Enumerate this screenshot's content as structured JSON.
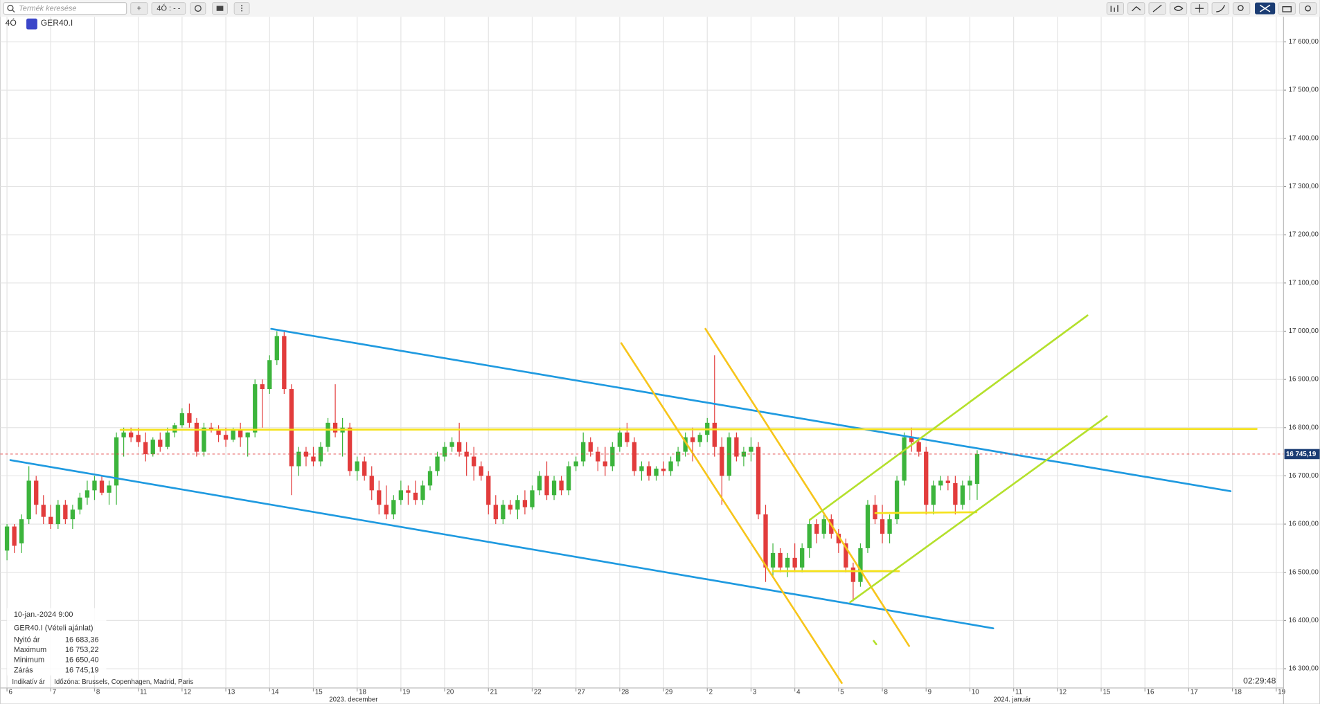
{
  "toolbar": {
    "search_placeholder": "Termék keresése",
    "add_button": "+",
    "timeframe_button": "4Ó : - -"
  },
  "header": {
    "timeframe": "4Ó",
    "symbol": "GER40.I"
  },
  "chart_data": {
    "type": "candlestick",
    "candles": [
      [
        16545,
        16600,
        16525,
        16595
      ],
      [
        16595,
        16600,
        16540,
        16555
      ],
      [
        16560,
        16620,
        16540,
        16610
      ],
      [
        16610,
        16720,
        16600,
        16690
      ],
      [
        16690,
        16700,
        16620,
        16640
      ],
      [
        16640,
        16660,
        16600,
        16615
      ],
      [
        16615,
        16640,
        16590,
        16600
      ],
      [
        16600,
        16650,
        16590,
        16640
      ],
      [
        16640,
        16650,
        16600,
        16610
      ],
      [
        16610,
        16640,
        16590,
        16630
      ],
      [
        16630,
        16665,
        16620,
        16655
      ],
      [
        16655,
        16690,
        16640,
        16670
      ],
      [
        16670,
        16700,
        16650,
        16690
      ],
      [
        16690,
        16700,
        16660,
        16665
      ],
      [
        16665,
        16690,
        16640,
        16680
      ],
      [
        16680,
        16790,
        16640,
        16780
      ],
      [
        16780,
        16800,
        16740,
        16790
      ],
      [
        16790,
        16800,
        16770,
        16780
      ],
      [
        16785,
        16800,
        16760,
        16770
      ],
      [
        16770,
        16790,
        16730,
        16745
      ],
      [
        16745,
        16780,
        16740,
        16775
      ],
      [
        16775,
        16790,
        16750,
        16760
      ],
      [
        16760,
        16800,
        16755,
        16790
      ],
      [
        16790,
        16810,
        16780,
        16805
      ],
      [
        16805,
        16840,
        16800,
        16830
      ],
      [
        16830,
        16850,
        16800,
        16810
      ],
      [
        16810,
        16820,
        16740,
        16750
      ],
      [
        16750,
        16810,
        16740,
        16800
      ],
      [
        16800,
        16810,
        16790,
        16795
      ],
      [
        16795,
        16805,
        16770,
        16785
      ],
      [
        16785,
        16800,
        16760,
        16775
      ],
      [
        16775,
        16800,
        16770,
        16795
      ],
      [
        16795,
        16810,
        16760,
        16780
      ],
      [
        16780,
        16790,
        16740,
        16790
      ],
      [
        16790,
        16900,
        16780,
        16890
      ],
      [
        16890,
        16900,
        16800,
        16880
      ],
      [
        16880,
        16950,
        16870,
        16940
      ],
      [
        16940,
        17000,
        16930,
        16990
      ],
      [
        16990,
        17000,
        16870,
        16880
      ],
      [
        16880,
        16890,
        16660,
        16720
      ],
      [
        16720,
        16760,
        16700,
        16750
      ],
      [
        16750,
        16760,
        16720,
        16740
      ],
      [
        16740,
        16760,
        16720,
        16730
      ],
      [
        16730,
        16770,
        16720,
        16760
      ],
      [
        16760,
        16820,
        16750,
        16810
      ],
      [
        16810,
        16890,
        16780,
        16790
      ],
      [
        16790,
        16820,
        16740,
        16800
      ],
      [
        16800,
        16810,
        16700,
        16710
      ],
      [
        16710,
        16740,
        16690,
        16730
      ],
      [
        16730,
        16740,
        16690,
        16700
      ],
      [
        16700,
        16720,
        16650,
        16670
      ],
      [
        16670,
        16690,
        16620,
        16640
      ],
      [
        16640,
        16680,
        16610,
        16620
      ],
      [
        16620,
        16660,
        16610,
        16650
      ],
      [
        16650,
        16690,
        16640,
        16670
      ],
      [
        16670,
        16680,
        16640,
        16665
      ],
      [
        16665,
        16690,
        16640,
        16650
      ],
      [
        16650,
        16690,
        16640,
        16680
      ],
      [
        16680,
        16720,
        16670,
        16710
      ],
      [
        16710,
        16750,
        16700,
        16740
      ],
      [
        16740,
        16770,
        16730,
        16760
      ],
      [
        16760,
        16780,
        16750,
        16770
      ],
      [
        16770,
        16810,
        16740,
        16750
      ],
      [
        16750,
        16770,
        16700,
        16740
      ],
      [
        16740,
        16760,
        16690,
        16720
      ],
      [
        16720,
        16730,
        16690,
        16700
      ],
      [
        16700,
        16710,
        16620,
        16640
      ],
      [
        16640,
        16660,
        16600,
        16610
      ],
      [
        16610,
        16650,
        16600,
        16640
      ],
      [
        16640,
        16650,
        16620,
        16630
      ],
      [
        16630,
        16660,
        16610,
        16650
      ],
      [
        16650,
        16670,
        16620,
        16635
      ],
      [
        16635,
        16680,
        16630,
        16670
      ],
      [
        16670,
        16710,
        16660,
        16700
      ],
      [
        16700,
        16730,
        16650,
        16660
      ],
      [
        16660,
        16700,
        16650,
        16690
      ],
      [
        16690,
        16700,
        16660,
        16670
      ],
      [
        16670,
        16730,
        16660,
        16720
      ],
      [
        16720,
        16740,
        16710,
        16730
      ],
      [
        16730,
        16790,
        16720,
        16770
      ],
      [
        16770,
        16780,
        16740,
        16750
      ],
      [
        16750,
        16760,
        16710,
        16730
      ],
      [
        16730,
        16760,
        16700,
        16720
      ],
      [
        16720,
        16770,
        16710,
        16760
      ],
      [
        16760,
        16800,
        16750,
        16790
      ],
      [
        16790,
        16810,
        16760,
        16770
      ],
      [
        16770,
        16780,
        16700,
        16710
      ],
      [
        16710,
        16730,
        16690,
        16720
      ],
      [
        16720,
        16730,
        16690,
        16700
      ],
      [
        16700,
        16720,
        16690,
        16715
      ],
      [
        16715,
        16730,
        16700,
        16710
      ],
      [
        16710,
        16740,
        16700,
        16730
      ],
      [
        16730,
        16760,
        16720,
        16750
      ],
      [
        16750,
        16790,
        16740,
        16780
      ],
      [
        16780,
        16800,
        16730,
        16770
      ],
      [
        16770,
        16790,
        16760,
        16785
      ],
      [
        16785,
        16820,
        16770,
        16810
      ],
      [
        16810,
        16950,
        16740,
        16760
      ],
      [
        16760,
        16780,
        16640,
        16700
      ],
      [
        16700,
        16790,
        16690,
        16780
      ],
      [
        16780,
        16790,
        16730,
        16740
      ],
      [
        16740,
        16760,
        16720,
        16750
      ],
      [
        16750,
        16780,
        16730,
        16760
      ],
      [
        16760,
        16770,
        16610,
        16620
      ],
      [
        16620,
        16640,
        16480,
        16510
      ],
      [
        16510,
        16560,
        16490,
        16540
      ],
      [
        16540,
        16550,
        16500,
        16510
      ],
      [
        16510,
        16540,
        16490,
        16530
      ],
      [
        16530,
        16560,
        16500,
        16510
      ],
      [
        16510,
        16560,
        16500,
        16550
      ],
      [
        16550,
        16610,
        16530,
        16600
      ],
      [
        16600,
        16610,
        16560,
        16580
      ],
      [
        16580,
        16620,
        16570,
        16610
      ],
      [
        16610,
        16620,
        16570,
        16580
      ],
      [
        16580,
        16590,
        16540,
        16560
      ],
      [
        16560,
        16570,
        16500,
        16510
      ],
      [
        16510,
        16520,
        16440,
        16480
      ],
      [
        16480,
        16560,
        16470,
        16550
      ],
      [
        16550,
        16650,
        16540,
        16640
      ],
      [
        16640,
        16660,
        16600,
        16610
      ],
      [
        16610,
        16640,
        16560,
        16580
      ],
      [
        16580,
        16620,
        16560,
        16610
      ],
      [
        16610,
        16700,
        16600,
        16690
      ],
      [
        16690,
        16790,
        16680,
        16780
      ],
      [
        16780,
        16800,
        16750,
        16770
      ],
      [
        16770,
        16780,
        16740,
        16750
      ],
      [
        16750,
        16760,
        16620,
        16640
      ],
      [
        16640,
        16690,
        16620,
        16680
      ],
      [
        16680,
        16700,
        16670,
        16690
      ],
      [
        16690,
        16700,
        16670,
        16685
      ],
      [
        16685,
        16700,
        16620,
        16640
      ],
      [
        16640,
        16690,
        16630,
        16680
      ],
      [
        16680,
        16700,
        16650,
        16690
      ],
      [
        16683.36,
        16753.22,
        16650.4,
        16745.19
      ]
    ],
    "up_color": "#3cb43c",
    "down_color": "#e23c3c",
    "ylim": [
      16260,
      17652
    ],
    "yticks": [
      {
        "value": 16300,
        "label": "16 300,00"
      },
      {
        "value": 16400,
        "label": "16 400,00"
      },
      {
        "value": 16500,
        "label": "16 500,00"
      },
      {
        "value": 16600,
        "label": "16 600,00"
      },
      {
        "value": 16700,
        "label": "16 700,00"
      },
      {
        "value": 16800,
        "label": "16 800,00"
      },
      {
        "value": 16900,
        "label": "16 900,00"
      },
      {
        "value": 17000,
        "label": "17 000,00"
      },
      {
        "value": 17100,
        "label": "17 100,00"
      },
      {
        "value": 17200,
        "label": "17 200,00"
      },
      {
        "value": 17300,
        "label": "17 300,00"
      },
      {
        "value": 17400,
        "label": "17 400,00"
      },
      {
        "value": 17500,
        "label": "17 500,00"
      },
      {
        "value": 17600,
        "label": "17 600,00"
      }
    ],
    "xlim": [
      -0.92,
      175
    ],
    "xticks": [
      {
        "value": 0,
        "label": "6"
      },
      {
        "value": 6,
        "label": "7"
      },
      {
        "value": 12,
        "label": "8"
      },
      {
        "value": 18,
        "label": "11"
      },
      {
        "value": 24,
        "label": "12"
      },
      {
        "value": 30,
        "label": "13"
      },
      {
        "value": 36,
        "label": "14"
      },
      {
        "value": 42,
        "label": "15"
      },
      {
        "value": 48,
        "label": "18"
      },
      {
        "value": 54,
        "label": "19"
      },
      {
        "value": 60,
        "label": "20"
      },
      {
        "value": 66,
        "label": "21"
      },
      {
        "value": 72,
        "label": "22"
      },
      {
        "value": 78,
        "label": "27"
      },
      {
        "value": 84,
        "label": "28"
      },
      {
        "value": 90,
        "label": "29"
      },
      {
        "value": 96,
        "label": "2"
      },
      {
        "value": 102,
        "label": "3"
      },
      {
        "value": 108,
        "label": "4"
      },
      {
        "value": 114,
        "label": "5"
      },
      {
        "value": 120,
        "label": "8"
      },
      {
        "value": 126,
        "label": "9"
      },
      {
        "value": 132,
        "label": "10"
      },
      {
        "value": 138,
        "label": "11"
      },
      {
        "value": 144,
        "label": "12"
      },
      {
        "value": 150,
        "label": "15"
      },
      {
        "value": 156,
        "label": "16"
      },
      {
        "value": 162,
        "label": "17"
      },
      {
        "value": 168,
        "label": "18"
      },
      {
        "value": 174,
        "label": "19"
      }
    ],
    "period_labels": [
      {
        "value": 47.5,
        "label": "2023. december"
      },
      {
        "value": 137.8,
        "label": "2024. január"
      }
    ],
    "last_price": {
      "value": 16745.19,
      "label": "16 745,19"
    },
    "grid": true
  },
  "info_panel": {
    "date": "10-jan.-2024 9:00",
    "instrument": "GER40.I (Vételi ajánlat)",
    "rows": [
      [
        "Nyitó ár",
        "16 683,36"
      ],
      [
        "Maximum",
        "16 753,22"
      ],
      [
        "Minimum",
        "16 650,40"
      ],
      [
        "Zárás",
        "16 745,19"
      ]
    ]
  },
  "footer": {
    "price_type": "Indikatív ár",
    "timezone": "Időzóna: Brussels, Copenhagen, Madrid, Paris",
    "clock": "02:29:48"
  }
}
